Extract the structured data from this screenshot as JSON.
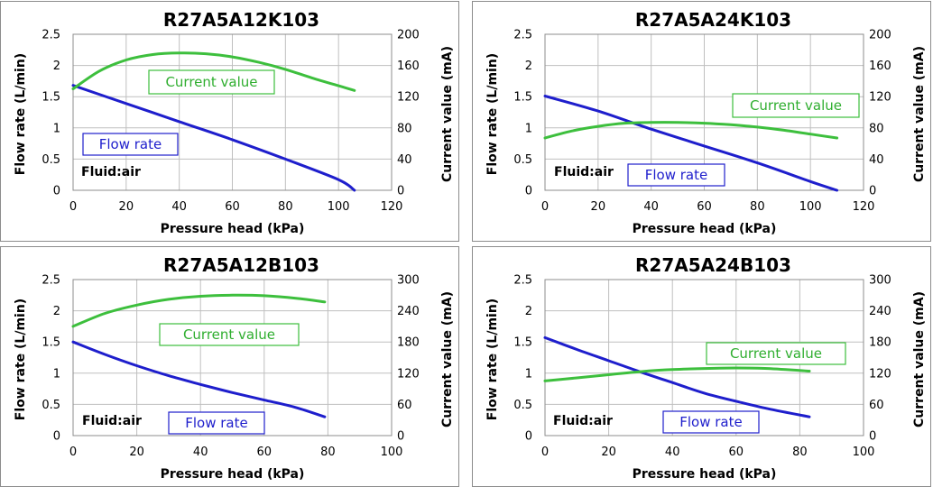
{
  "chart_data": [
    {
      "type": "line",
      "title": "R27A5A12K103",
      "xlabel": "Pressure head (kPa)",
      "ylabel": "Flow rate (L/min)",
      "y2label": "Current value (mA)",
      "xlim": [
        0,
        120
      ],
      "xticks": [
        0,
        20,
        40,
        60,
        80,
        100,
        120
      ],
      "ylim": [
        0,
        2.5
      ],
      "yticks": [
        "0",
        "0.5",
        "1",
        "1.5",
        "2",
        "2.5"
      ],
      "y2lim": [
        0,
        200
      ],
      "y2ticks": [
        0,
        40,
        80,
        120,
        160,
        200
      ],
      "grid": true,
      "annotation": "Fluid:air",
      "series": [
        {
          "name": "Flow rate",
          "axis": "left",
          "color": "#1e1ecc",
          "label_color": "#1e1ecc",
          "x": [
            0,
            20,
            40,
            60,
            80,
            100,
            106
          ],
          "y": [
            1.68,
            1.39,
            1.1,
            0.81,
            0.5,
            0.17,
            0.0
          ]
        },
        {
          "name": "Current value",
          "axis": "right",
          "color": "#3dbf3d",
          "label_color": "#2fae2f",
          "x": [
            0,
            10,
            20,
            30,
            40,
            50,
            60,
            70,
            80,
            90,
            100,
            106
          ],
          "y": [
            130,
            153,
            167,
            174,
            176,
            175,
            171,
            164,
            155,
            144,
            134,
            128
          ]
        }
      ]
    },
    {
      "type": "line",
      "title": "R27A5A24K103",
      "xlabel": "Pressure head (kPa)",
      "ylabel": "Flow rate (L/min)",
      "y2label": "Current value (mA)",
      "xlim": [
        0,
        120
      ],
      "xticks": [
        0,
        20,
        40,
        60,
        80,
        100,
        120
      ],
      "ylim": [
        0,
        2.5
      ],
      "yticks": [
        "0",
        "0.5",
        "1",
        "1.5",
        "2",
        "2.5"
      ],
      "y2lim": [
        0,
        200
      ],
      "y2ticks": [
        0,
        40,
        80,
        120,
        160,
        200
      ],
      "grid": true,
      "annotation": "Fluid:air",
      "series": [
        {
          "name": "Flow rate",
          "axis": "left",
          "color": "#1e1ecc",
          "label_color": "#1e1ecc",
          "x": [
            0,
            20,
            40,
            60,
            80,
            100,
            110
          ],
          "y": [
            1.51,
            1.27,
            0.98,
            0.71,
            0.44,
            0.14,
            0.0
          ]
        },
        {
          "name": "Current value",
          "axis": "right",
          "color": "#3dbf3d",
          "label_color": "#2fae2f",
          "x": [
            0,
            10,
            20,
            30,
            40,
            50,
            60,
            70,
            80,
            90,
            100,
            110
          ],
          "y": [
            67,
            76,
            82,
            86,
            87,
            87,
            86,
            84,
            81,
            77,
            72,
            67
          ]
        }
      ]
    },
    {
      "type": "line",
      "title": "R27A5A12B103",
      "xlabel": "Pressure head (kPa)",
      "ylabel": "Flow rate (L/min)",
      "y2label": "Current value (mA)",
      "xlim": [
        0,
        100
      ],
      "xticks": [
        0,
        20,
        40,
        60,
        80,
        100
      ],
      "ylim": [
        0,
        2.5
      ],
      "yticks": [
        "0",
        "0.5",
        "1",
        "1.5",
        "2",
        "2.5"
      ],
      "y2lim": [
        0,
        300
      ],
      "y2ticks": [
        0,
        60,
        120,
        180,
        240,
        300
      ],
      "grid": true,
      "annotation": "Fluid:air",
      "series": [
        {
          "name": "Flow rate",
          "axis": "left",
          "color": "#1e1ecc",
          "label_color": "#1e1ecc",
          "x": [
            0,
            10,
            20,
            30,
            40,
            50,
            60,
            70,
            79
          ],
          "y": [
            1.5,
            1.3,
            1.12,
            0.96,
            0.82,
            0.69,
            0.57,
            0.45,
            0.3
          ]
        },
        {
          "name": "Current value",
          "axis": "right",
          "color": "#3dbf3d",
          "label_color": "#2fae2f",
          "x": [
            0,
            10,
            20,
            30,
            40,
            50,
            60,
            70,
            79
          ],
          "y": [
            210,
            235,
            251,
            262,
            268,
            270,
            269,
            264,
            257
          ]
        }
      ]
    },
    {
      "type": "line",
      "title": "R27A5A24B103",
      "xlabel": "Pressure head (kPa)",
      "ylabel": "Flow rate (L/min)",
      "y2label": "Current value (mA)",
      "xlim": [
        0,
        100
      ],
      "xticks": [
        0,
        20,
        40,
        60,
        80,
        100
      ],
      "ylim": [
        0,
        2.5
      ],
      "yticks": [
        "0",
        "0.5",
        "1",
        "1.5",
        "2",
        "2.5"
      ],
      "y2lim": [
        0,
        300
      ],
      "y2ticks": [
        0,
        60,
        120,
        180,
        240,
        300
      ],
      "grid": true,
      "annotation": "Fluid:air",
      "series": [
        {
          "name": "Flow rate",
          "axis": "left",
          "color": "#1e1ecc",
          "label_color": "#1e1ecc",
          "x": [
            0,
            10,
            20,
            30,
            40,
            50,
            60,
            70,
            83
          ],
          "y": [
            1.57,
            1.38,
            1.2,
            1.02,
            0.85,
            0.68,
            0.55,
            0.43,
            0.3
          ]
        },
        {
          "name": "Current value",
          "axis": "right",
          "color": "#3dbf3d",
          "label_color": "#2fae2f",
          "x": [
            0,
            10,
            20,
            30,
            40,
            50,
            60,
            70,
            83
          ],
          "y": [
            105,
            111,
            117,
            123,
            127,
            129,
            130,
            129,
            124
          ]
        }
      ]
    }
  ]
}
